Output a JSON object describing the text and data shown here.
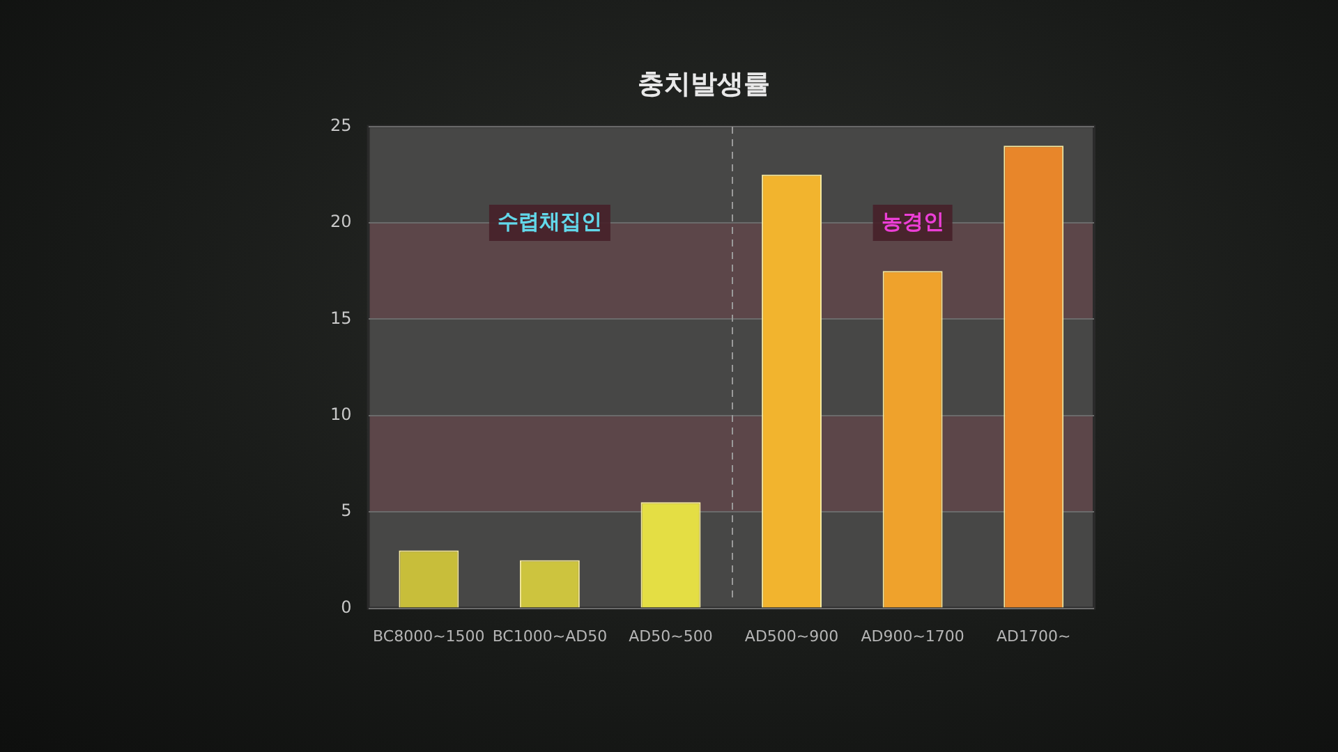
{
  "chart_data": {
    "type": "bar",
    "title": "충치발생률",
    "categories": [
      "BC8000~1500",
      "BC1000~AD50",
      "AD50~500",
      "AD500~900",
      "AD900~1700",
      "AD1700~"
    ],
    "values": [
      3,
      2.5,
      5.5,
      22.5,
      17.5,
      24
    ],
    "colors": [
      "#c8be3a",
      "#cdc43e",
      "#e4de44",
      "#f2b42e",
      "#efa22c",
      "#e8862a"
    ],
    "ylim": [
      0,
      25
    ],
    "yticks": [
      0,
      5,
      10,
      15,
      20,
      25
    ],
    "grid": "y",
    "legend": false,
    "bands": [
      {
        "axis": "y",
        "from": 5,
        "to": 10,
        "color": "#5c4649"
      },
      {
        "axis": "y",
        "from": 15,
        "to": 20,
        "color": "#5c4649"
      }
    ],
    "annotations": [
      {
        "text": "수렵채집인",
        "x": "BC1000~AD50",
        "y": 20
      },
      {
        "text": "농경인",
        "x": "AD900~1700",
        "y": 20
      }
    ]
  }
}
